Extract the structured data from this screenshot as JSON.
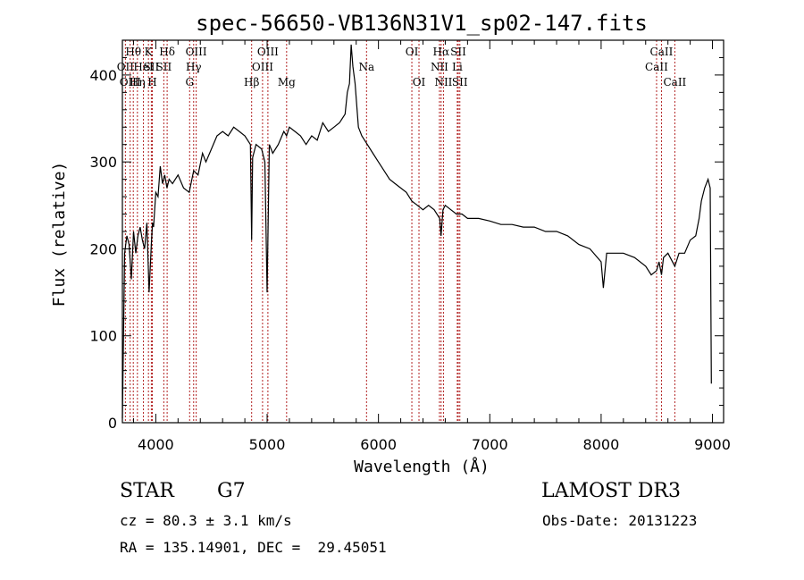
{
  "chart_data": {
    "type": "line",
    "title": "spec-56650-VB136N31V1_sp02-147.fits",
    "xlabel": "Wavelength (Å)",
    "ylabel": "Flux (relative)",
    "xlim": [
      3700,
      9100
    ],
    "ylim": [
      0,
      440
    ],
    "x_ticks": [
      4000,
      5000,
      6000,
      7000,
      8000,
      9000
    ],
    "x_tick_labels": [
      "4000",
      "5000",
      "6000",
      "7000",
      "8000",
      "9000"
    ],
    "y_ticks": [
      0,
      100,
      200,
      300,
      400
    ],
    "y_tick_labels": [
      "0",
      "100",
      "200",
      "300",
      "400"
    ],
    "grid": false,
    "line_color": "#000000",
    "marker_color": "#b22222",
    "series": [
      {
        "x": [
          3700,
          3720,
          3740,
          3760,
          3780,
          3800,
          3820,
          3840,
          3860,
          3880,
          3900,
          3920,
          3940,
          3960,
          3970,
          3980,
          4000,
          4020,
          4040,
          4060,
          4080,
          4100,
          4120,
          4150,
          4200,
          4250,
          4300,
          4340,
          4380,
          4420,
          4450,
          4500,
          4550,
          4600,
          4650,
          4700,
          4750,
          4800,
          4850,
          4861,
          4870,
          4900,
          4950,
          4980,
          5000,
          5020,
          5050,
          5100,
          5150,
          5175,
          5200,
          5250,
          5300,
          5350,
          5400,
          5450,
          5500,
          5550,
          5600,
          5650,
          5700,
          5720,
          5740,
          5755,
          5770,
          5790,
          5820,
          5850,
          5900,
          5950,
          6000,
          6050,
          6100,
          6150,
          6200,
          6250,
          6300,
          6350,
          6400,
          6450,
          6500,
          6550,
          6562,
          6580,
          6600,
          6650,
          6700,
          6750,
          6800,
          6900,
          7000,
          7100,
          7200,
          7300,
          7400,
          7500,
          7600,
          7700,
          7800,
          7900,
          8000,
          8020,
          8050,
          8100,
          8200,
          8300,
          8400,
          8450,
          8498,
          8520,
          8542,
          8560,
          8600,
          8662,
          8700,
          8750,
          8800,
          8850,
          8880,
          8900,
          8930,
          8960,
          8980,
          8990
        ],
        "y": [
          5,
          195,
          215,
          205,
          165,
          220,
          195,
          215,
          225,
          210,
          200,
          230,
          150,
          205,
          230,
          225,
          265,
          260,
          295,
          275,
          285,
          270,
          280,
          275,
          285,
          270,
          265,
          290,
          285,
          310,
          300,
          315,
          330,
          335,
          330,
          340,
          335,
          330,
          320,
          210,
          305,
          320,
          315,
          300,
          150,
          320,
          310,
          320,
          335,
          330,
          340,
          335,
          330,
          320,
          330,
          325,
          345,
          335,
          340,
          345,
          355,
          380,
          390,
          435,
          410,
          390,
          340,
          330,
          320,
          310,
          300,
          290,
          280,
          275,
          270,
          265,
          255,
          250,
          245,
          250,
          245,
          235,
          215,
          245,
          250,
          245,
          240,
          240,
          235,
          235,
          232,
          228,
          228,
          225,
          225,
          220,
          220,
          215,
          205,
          200,
          185,
          155,
          195,
          195,
          195,
          190,
          180,
          170,
          175,
          185,
          170,
          190,
          195,
          180,
          195,
          195,
          210,
          215,
          235,
          255,
          270,
          280,
          270,
          45
        ]
      }
    ],
    "lines": [
      {
        "label": "Hθ",
        "x": 3798,
        "row": 1
      },
      {
        "label": "OII",
        "x": 3727,
        "row": 2
      },
      {
        "label": "OIII",
        "x": 3770,
        "row": 3
      },
      {
        "label": "Hη",
        "x": 3835,
        "row": 3
      },
      {
        "label": "HeI",
        "x": 3889,
        "row": 2
      },
      {
        "label": "K",
        "x": 3934,
        "row": 1
      },
      {
        "label": "SII",
        "x": 3960,
        "row": 2
      },
      {
        "label": "H",
        "x": 3969,
        "row": 3
      },
      {
        "label": "Hδ",
        "x": 4102,
        "row": 1
      },
      {
        "label": "SII",
        "x": 4072,
        "row": 2
      },
      {
        "label": "OIII",
        "x": 4363,
        "row": 1
      },
      {
        "label": "Hγ",
        "x": 4340,
        "row": 2
      },
      {
        "label": "G",
        "x": 4304,
        "row": 3
      },
      {
        "label": "Hβ",
        "x": 4861,
        "row": 3
      },
      {
        "label": "OIII",
        "x": 5007,
        "row": 1
      },
      {
        "label": "OIII",
        "x": 4959,
        "row": 2
      },
      {
        "label": "Mg",
        "x": 5175,
        "row": 3
      },
      {
        "label": "Na",
        "x": 5893,
        "row": 2
      },
      {
        "label": "OI",
        "x": 6300,
        "row": 1
      },
      {
        "label": "OI",
        "x": 6364,
        "row": 3
      },
      {
        "label": "Hα",
        "x": 6563,
        "row": 1
      },
      {
        "label": "NII",
        "x": 6548,
        "row": 2
      },
      {
        "label": "NII",
        "x": 6584,
        "row": 3
      },
      {
        "label": "SII",
        "x": 6717,
        "row": 1
      },
      {
        "label": "Li",
        "x": 6708,
        "row": 2
      },
      {
        "label": "SII",
        "x": 6731,
        "row": 3
      },
      {
        "label": "CaII",
        "x": 8542,
        "row": 1
      },
      {
        "label": "CaII",
        "x": 8498,
        "row": 2
      },
      {
        "label": "CaII",
        "x": 8662,
        "row": 3
      }
    ]
  },
  "footer": {
    "object_type": "STAR",
    "subclass": "G7",
    "survey": "LAMOST DR3",
    "cz": "cz = 80.3 ± 3.1 km/s",
    "obs_date": "Obs-Date: 20131223",
    "coords": "RA = 135.14901, DEC =  29.45051"
  }
}
